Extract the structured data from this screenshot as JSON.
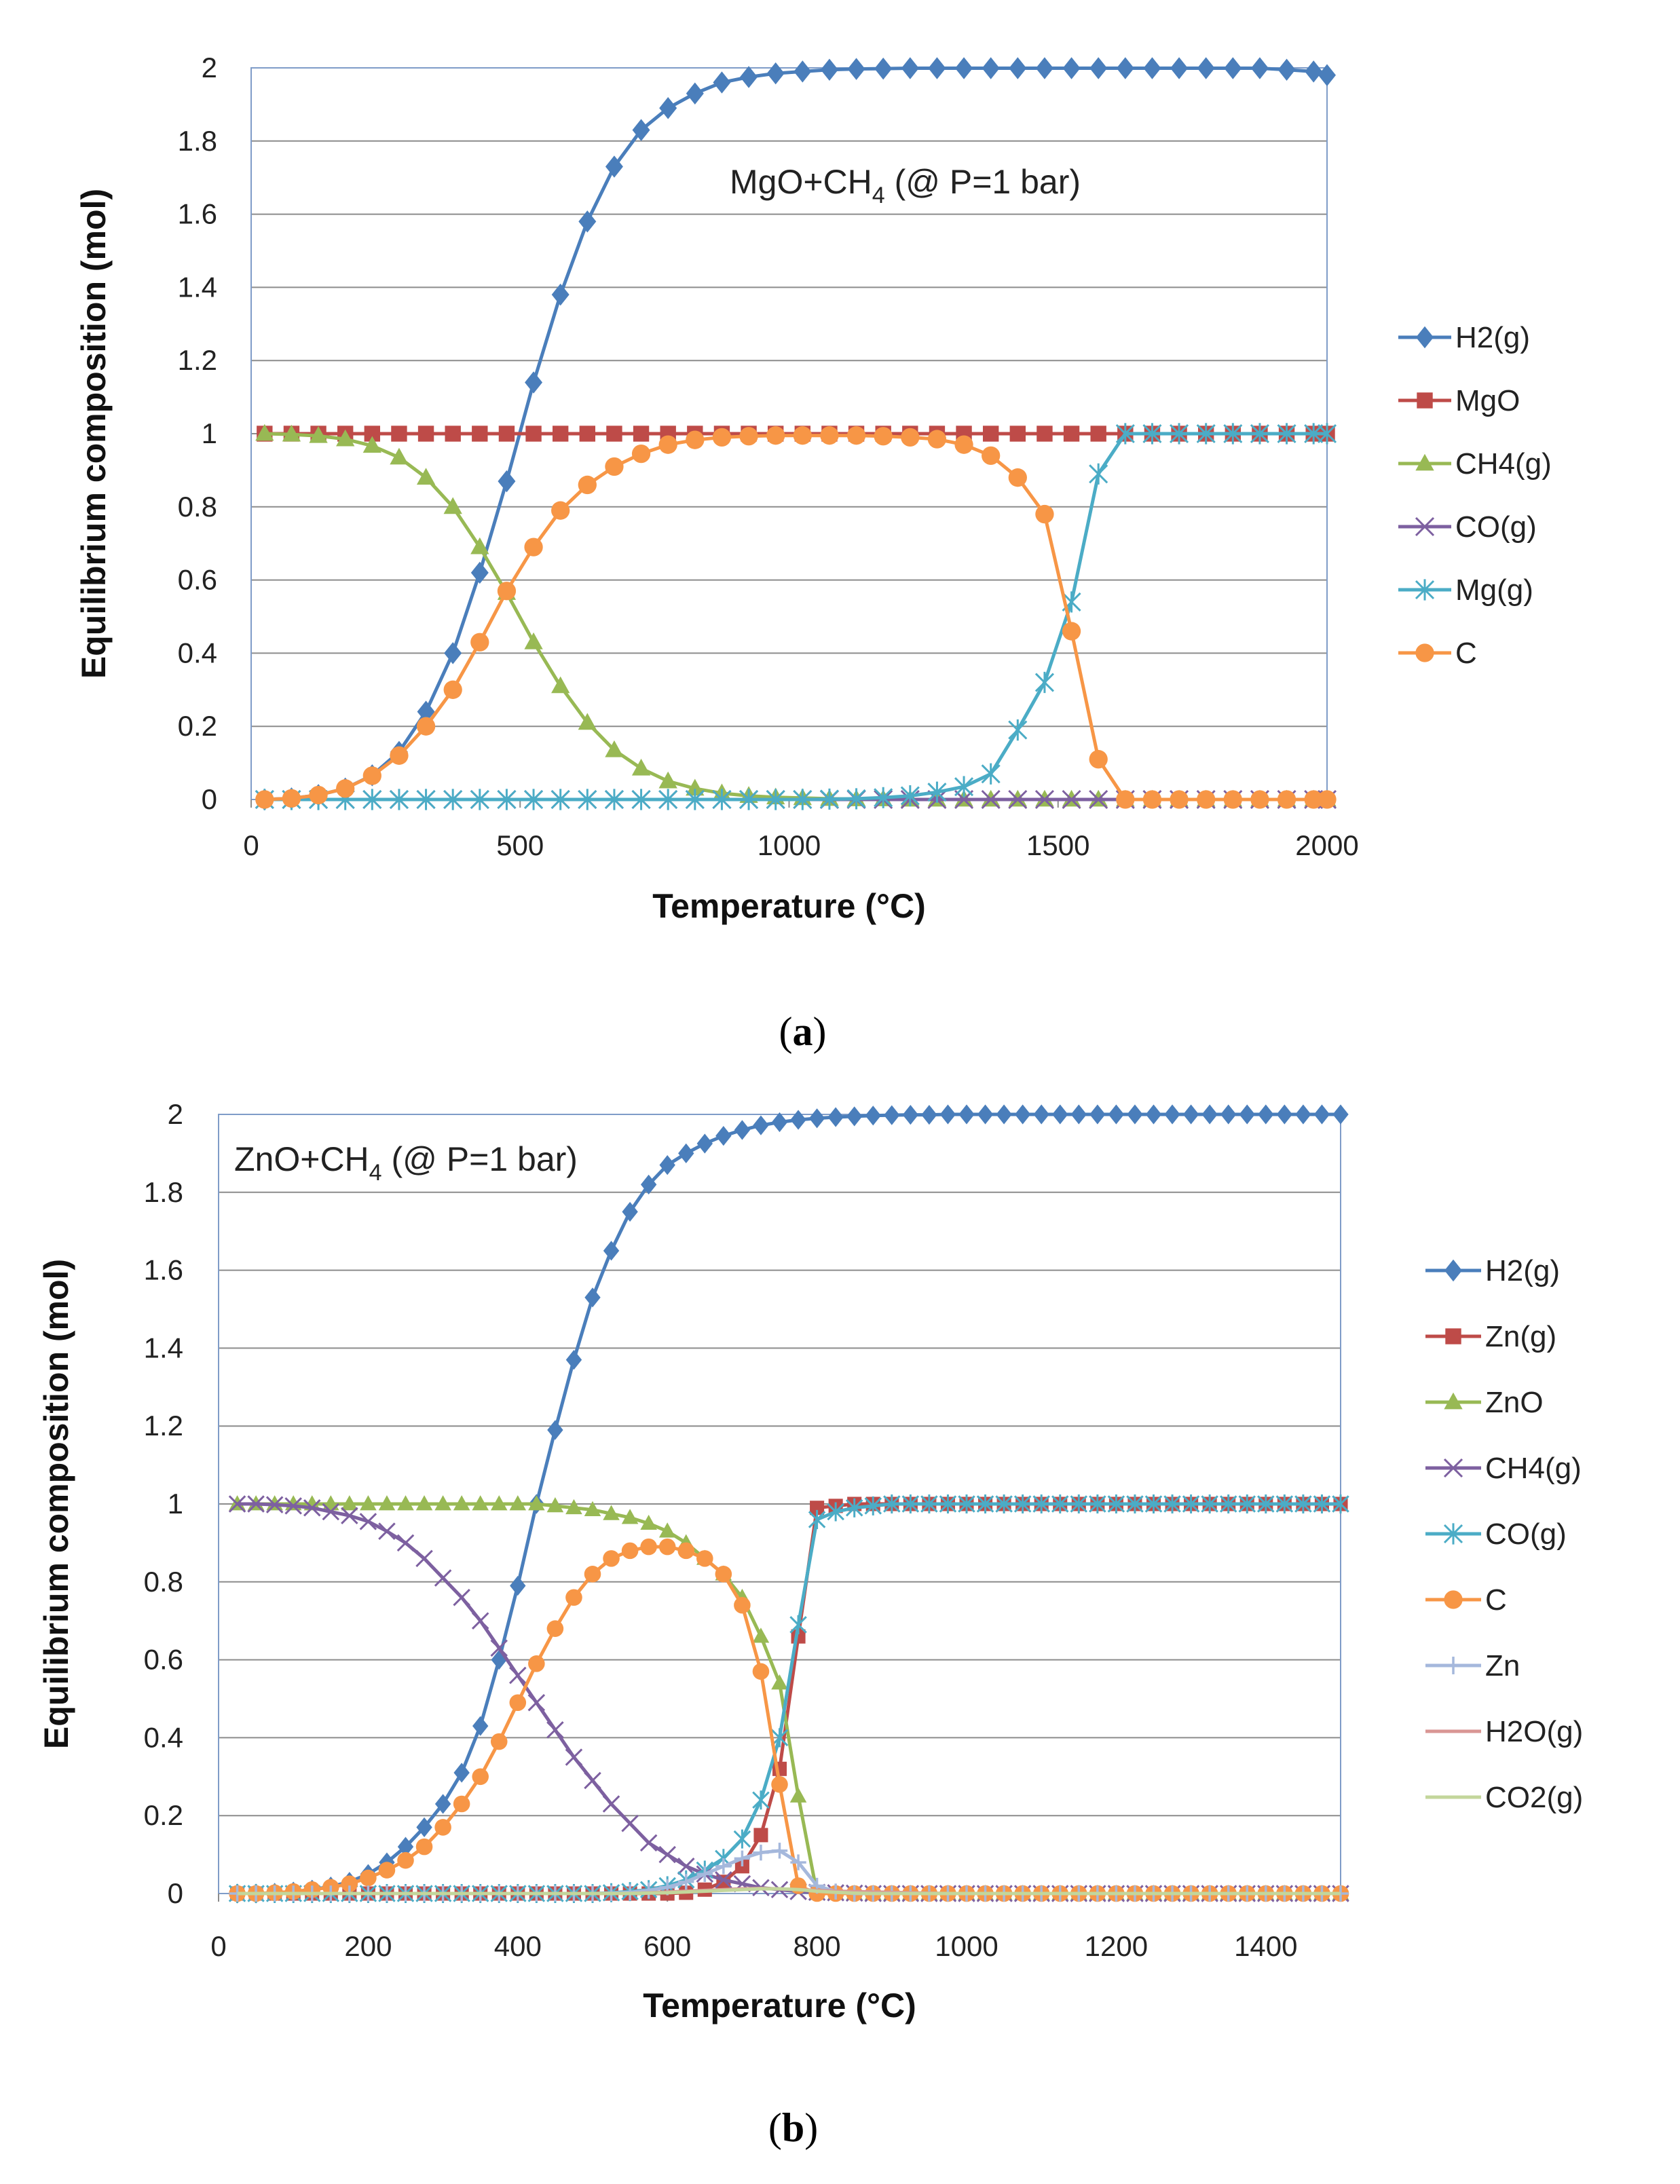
{
  "chart_data": [
    {
      "type": "line",
      "title": "",
      "annotation": {
        "main": "MgO+CH",
        "sub": "4",
        "tail": " (@ P=1 bar)"
      },
      "caption": {
        "open": "(",
        "letter": "a",
        "close": ")"
      },
      "xlabel": "Temperature (°C)",
      "ylabel": "Equilibrium composition (mol)",
      "xlim": [
        0,
        2000
      ],
      "ylim": [
        0,
        2
      ],
      "xticks": [
        "0",
        "500",
        "1000",
        "1500",
        "2000"
      ],
      "yticks": [
        "0",
        "0.2",
        "0.4",
        "0.6",
        "0.8",
        "1",
        "1.2",
        "1.4",
        "1.6",
        "1.8",
        "2"
      ],
      "legend_position": "right",
      "gridlines": "horizontal",
      "x": [
        25,
        75,
        125,
        175,
        225,
        275,
        325,
        375,
        425,
        475,
        525,
        575,
        625,
        675,
        725,
        775,
        825,
        875,
        925,
        975,
        1025,
        1075,
        1125,
        1175,
        1225,
        1275,
        1325,
        1375,
        1425,
        1475,
        1525,
        1575,
        1625,
        1675,
        1725,
        1775,
        1825,
        1875,
        1925,
        1975,
        2000
      ],
      "series": [
        {
          "name": "H2(g)",
          "color": "#4A7EBB",
          "marker": "diamond",
          "values": [
            0.0,
            0.003,
            0.012,
            0.03,
            0.066,
            0.13,
            0.24,
            0.4,
            0.62,
            0.87,
            1.14,
            1.38,
            1.58,
            1.73,
            1.83,
            1.89,
            1.93,
            1.96,
            1.975,
            1.985,
            1.99,
            1.995,
            1.997,
            1.998,
            1.999,
            1.999,
            1.999,
            1.999,
            1.999,
            1.999,
            1.999,
            1.999,
            1.999,
            1.999,
            1.999,
            1.999,
            1.999,
            1.999,
            1.995,
            1.99,
            1.98
          ]
        },
        {
          "name": "MgO",
          "color": "#BE4B48",
          "marker": "square",
          "values": [
            1,
            1,
            1,
            1,
            1,
            1,
            1,
            1,
            1,
            1,
            1,
            1,
            1,
            1,
            1,
            1,
            1,
            1,
            1,
            1,
            1,
            1,
            1,
            1,
            1,
            1,
            1,
            1,
            1,
            1,
            1,
            1,
            1,
            1,
            1,
            1,
            1,
            1,
            1,
            1,
            1
          ]
        },
        {
          "name": "CH4(g)",
          "color": "#98B954",
          "marker": "triangle",
          "values": [
            1.0,
            0.998,
            0.994,
            0.985,
            0.967,
            0.935,
            0.88,
            0.8,
            0.69,
            0.565,
            0.43,
            0.31,
            0.21,
            0.135,
            0.085,
            0.05,
            0.03,
            0.017,
            0.01,
            0.006,
            0.004,
            0.002,
            0.001,
            0.001,
            0.0,
            0.0,
            0.0,
            0.0,
            0.0,
            0.0,
            0.0,
            0.0,
            0.0,
            0.0,
            0.0,
            0.0,
            0.0,
            0.0,
            0.0,
            0.0,
            0.0
          ]
        },
        {
          "name": "CO(g)",
          "color": "#7D60A0",
          "marker": "x",
          "values": [
            0,
            0,
            0,
            0,
            0,
            0,
            0,
            0,
            0,
            0,
            0,
            0,
            0,
            0,
            0,
            0,
            0,
            0,
            0,
            0,
            0,
            0,
            0,
            0,
            0,
            0,
            0,
            0,
            0,
            0,
            0,
            0,
            0,
            0,
            0,
            0,
            0,
            0,
            0,
            0,
            0
          ]
        },
        {
          "name": "Mg(g)",
          "color": "#4BACC6",
          "marker": "star",
          "values": [
            0,
            0,
            0,
            0,
            0,
            0,
            0,
            0,
            0,
            0,
            0,
            0,
            0,
            0,
            0,
            0,
            0,
            0,
            0,
            0,
            0,
            0.001,
            0.002,
            0.005,
            0.01,
            0.02,
            0.035,
            0.07,
            0.19,
            0.32,
            0.54,
            0.89,
            1.0,
            1.0,
            1.0,
            1.0,
            1.0,
            1.0,
            1.0,
            1.0,
            1.0
          ]
        },
        {
          "name": "C",
          "color": "#F79646",
          "marker": "circle",
          "values": [
            0.0,
            0.003,
            0.012,
            0.03,
            0.065,
            0.12,
            0.2,
            0.3,
            0.43,
            0.57,
            0.69,
            0.79,
            0.86,
            0.91,
            0.945,
            0.97,
            0.983,
            0.99,
            0.993,
            0.995,
            0.995,
            0.995,
            0.995,
            0.993,
            0.99,
            0.985,
            0.97,
            0.94,
            0.88,
            0.78,
            0.46,
            0.11,
            0.0,
            0.0,
            0.0,
            0.0,
            0.0,
            0.0,
            0.0,
            0.0,
            0.0
          ]
        }
      ]
    },
    {
      "type": "line",
      "title": "",
      "annotation": {
        "main": "ZnO+CH",
        "sub": "4",
        "tail": " (@ P=1 bar)"
      },
      "caption": {
        "open": "(",
        "letter": "b",
        "close": ")"
      },
      "xlabel": "Temperature (°C)",
      "ylabel": "Equilibrium composition (mol)",
      "xlim": [
        0,
        1500
      ],
      "ylim": [
        0,
        2
      ],
      "xticks": [
        "0",
        "200",
        "400",
        "600",
        "800",
        "1000",
        "1200",
        "1400"
      ],
      "yticks": [
        "0",
        "0.2",
        "0.4",
        "0.6",
        "0.8",
        "1",
        "1.2",
        "1.4",
        "1.6",
        "1.8",
        "2"
      ],
      "legend_position": "right",
      "gridlines": "horizontal",
      "x": [
        25,
        50,
        75,
        100,
        125,
        150,
        175,
        200,
        225,
        250,
        275,
        300,
        325,
        350,
        375,
        400,
        425,
        450,
        475,
        500,
        525,
        550,
        575,
        600,
        625,
        650,
        675,
        700,
        725,
        750,
        775,
        800,
        825,
        850,
        875,
        900,
        925,
        950,
        975,
        1000,
        1025,
        1050,
        1075,
        1100,
        1125,
        1150,
        1175,
        1200,
        1225,
        1250,
        1275,
        1300,
        1325,
        1350,
        1375,
        1400,
        1425,
        1450,
        1475,
        1500
      ],
      "series": [
        {
          "name": "H2(g)",
          "color": "#4A7EBB",
          "marker": "diamond",
          "values": [
            0.0,
            0.0,
            0.002,
            0.005,
            0.01,
            0.018,
            0.03,
            0.05,
            0.08,
            0.12,
            0.17,
            0.23,
            0.31,
            0.43,
            0.6,
            0.79,
            1.0,
            1.19,
            1.37,
            1.53,
            1.65,
            1.75,
            1.82,
            1.87,
            1.9,
            1.925,
            1.945,
            1.96,
            1.972,
            1.98,
            1.986,
            1.99,
            1.993,
            1.995,
            1.997,
            1.998,
            1.999,
            1.999,
            2.0,
            2.0,
            2.0,
            2.0,
            2.0,
            2.0,
            2.0,
            2.0,
            2.0,
            2.0,
            2.0,
            2.0,
            2.0,
            2.0,
            2.0,
            2.0,
            2.0,
            2.0,
            2.0,
            2.0,
            2.0,
            2.0
          ]
        },
        {
          "name": "Zn(g)",
          "color": "#BE4B48",
          "marker": "square",
          "values": [
            0,
            0,
            0,
            0,
            0,
            0,
            0,
            0,
            0,
            0,
            0,
            0,
            0,
            0,
            0,
            0,
            0,
            0,
            0,
            0,
            0,
            0,
            0,
            0,
            0.002,
            0.01,
            0.03,
            0.07,
            0.15,
            0.32,
            0.66,
            0.99,
            0.995,
            1.0,
            1.0,
            1.0,
            1.0,
            1.0,
            1.0,
            1.0,
            1.0,
            1.0,
            1.0,
            1.0,
            1.0,
            1.0,
            1.0,
            1.0,
            1.0,
            1.0,
            1.0,
            1.0,
            1.0,
            1.0,
            1.0,
            1.0,
            1.0,
            1.0,
            1.0,
            1.0
          ]
        },
        {
          "name": "ZnO",
          "color": "#98B954",
          "marker": "triangle",
          "values": [
            1,
            1,
            1,
            1,
            1,
            1,
            1,
            1,
            1,
            1,
            1,
            1,
            1,
            1,
            1,
            1,
            1,
            0.995,
            0.99,
            0.985,
            0.975,
            0.965,
            0.95,
            0.93,
            0.9,
            0.86,
            0.82,
            0.76,
            0.66,
            0.54,
            0.25,
            0.0,
            0.0,
            0.0,
            0.0,
            0.0,
            0.0,
            0.0,
            0.0,
            0.0,
            0.0,
            0.0,
            0.0,
            0.0,
            0.0,
            0.0,
            0.0,
            0.0,
            0.0,
            0.0,
            0.0,
            0.0,
            0.0,
            0.0,
            0.0,
            0.0,
            0.0,
            0.0,
            0.0,
            0.0
          ]
        },
        {
          "name": "CH4(g)",
          "color": "#7D60A0",
          "marker": "x",
          "values": [
            1.0,
            1.0,
            0.998,
            0.995,
            0.99,
            0.98,
            0.97,
            0.955,
            0.93,
            0.9,
            0.86,
            0.81,
            0.76,
            0.7,
            0.63,
            0.56,
            0.49,
            0.42,
            0.35,
            0.29,
            0.23,
            0.18,
            0.13,
            0.1,
            0.07,
            0.05,
            0.035,
            0.025,
            0.015,
            0.01,
            0.005,
            0.003,
            0.002,
            0.001,
            0.0,
            0.0,
            0.0,
            0.0,
            0.0,
            0.0,
            0.0,
            0.0,
            0.0,
            0.0,
            0.0,
            0.0,
            0.0,
            0.0,
            0.0,
            0.0,
            0.0,
            0.0,
            0.0,
            0.0,
            0.0,
            0.0,
            0.0,
            0.0,
            0.0,
            0.0
          ]
        },
        {
          "name": "CO(g)",
          "color": "#4BACC6",
          "marker": "star",
          "values": [
            0,
            0,
            0,
            0,
            0,
            0,
            0,
            0,
            0,
            0,
            0,
            0,
            0,
            0,
            0,
            0,
            0,
            0,
            0,
            0,
            0.002,
            0.005,
            0.01,
            0.02,
            0.035,
            0.06,
            0.09,
            0.14,
            0.24,
            0.4,
            0.69,
            0.96,
            0.98,
            0.99,
            0.995,
            1.0,
            1.0,
            1.0,
            1.0,
            1.0,
            1.0,
            1.0,
            1.0,
            1.0,
            1.0,
            1.0,
            1.0,
            1.0,
            1.0,
            1.0,
            1.0,
            1.0,
            1.0,
            1.0,
            1.0,
            1.0,
            1.0,
            1.0,
            1.0,
            1.0
          ]
        },
        {
          "name": "C",
          "color": "#F79646",
          "marker": "circle",
          "values": [
            0.0,
            0.0,
            0.002,
            0.005,
            0.01,
            0.016,
            0.025,
            0.04,
            0.06,
            0.085,
            0.12,
            0.17,
            0.23,
            0.3,
            0.39,
            0.49,
            0.59,
            0.68,
            0.76,
            0.82,
            0.86,
            0.88,
            0.89,
            0.89,
            0.88,
            0.86,
            0.82,
            0.74,
            0.57,
            0.28,
            0.02,
            0.0,
            0.0,
            0.0,
            0.0,
            0.0,
            0.0,
            0.0,
            0.0,
            0.0,
            0.0,
            0.0,
            0.0,
            0.0,
            0.0,
            0.0,
            0.0,
            0.0,
            0.0,
            0.0,
            0.0,
            0.0,
            0.0,
            0.0,
            0.0,
            0.0,
            0.0,
            0.0,
            0.0,
            0.0
          ]
        },
        {
          "name": "Zn",
          "color": "#A5B8DC",
          "marker": "plus",
          "values": [
            0,
            0,
            0,
            0,
            0,
            0,
            0,
            0,
            0,
            0,
            0,
            0,
            0,
            0,
            0,
            0,
            0,
            0,
            0,
            0,
            0.001,
            0.003,
            0.008,
            0.016,
            0.03,
            0.05,
            0.07,
            0.09,
            0.105,
            0.11,
            0.08,
            0.02,
            0.005,
            0.0,
            0.0,
            0.0,
            0.0,
            0.0,
            0.0,
            0.0,
            0.0,
            0.0,
            0.0,
            0.0,
            0.0,
            0.0,
            0.0,
            0.0,
            0.0,
            0.0,
            0.0,
            0.0,
            0.0,
            0.0,
            0.0,
            0.0,
            0.0,
            0.0,
            0.0,
            0.0
          ]
        },
        {
          "name": "H2O(g)",
          "color": "#D99694",
          "marker": "none",
          "values": [
            0,
            0,
            0,
            0,
            0,
            0,
            0,
            0,
            0,
            0,
            0,
            0,
            0,
            0,
            0,
            0,
            0,
            0,
            0,
            0,
            0,
            0,
            0.002,
            0.004,
            0.006,
            0.008,
            0.01,
            0.012,
            0.013,
            0.012,
            0.01,
            0.008,
            0.006,
            0.005,
            0.004,
            0.003,
            0.002,
            0.001,
            0.0,
            0.0,
            0.0,
            0.0,
            0.0,
            0.0,
            0.0,
            0.0,
            0.0,
            0.0,
            0.0,
            0.0,
            0.0,
            0.0,
            0.0,
            0.0,
            0.0,
            0.0,
            0.0,
            0.0,
            0.0,
            0.0
          ]
        },
        {
          "name": "CO2(g)",
          "color": "#C3D69B",
          "marker": "none",
          "values": [
            0,
            0,
            0,
            0,
            0,
            0,
            0,
            0,
            0,
            0,
            0,
            0,
            0,
            0,
            0,
            0,
            0,
            0,
            0,
            0,
            0,
            0,
            0.001,
            0.002,
            0.004,
            0.006,
            0.008,
            0.01,
            0.012,
            0.012,
            0.01,
            0.006,
            0.003,
            0.001,
            0.0,
            0.0,
            0.0,
            0.0,
            0.0,
            0.0,
            0.0,
            0.0,
            0.0,
            0.0,
            0.0,
            0.0,
            0.0,
            0.0,
            0.0,
            0.0,
            0.0,
            0.0,
            0.0,
            0.0,
            0.0,
            0.0,
            0.0,
            0.0,
            0.0,
            0.0
          ]
        }
      ]
    }
  ]
}
